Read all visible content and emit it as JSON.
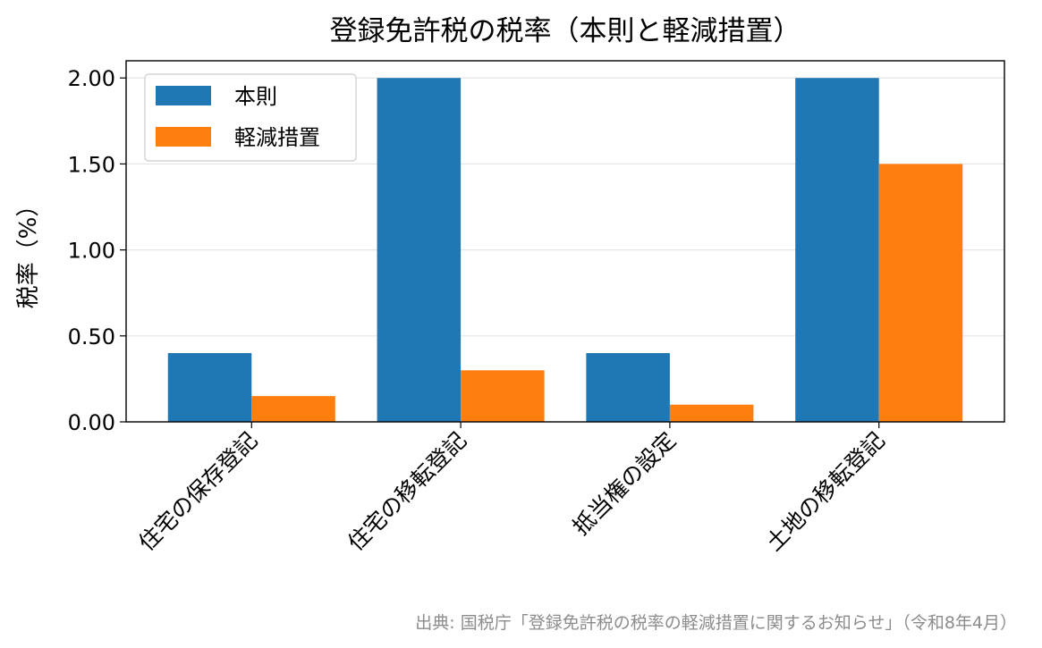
{
  "chart_data": {
    "type": "bar",
    "title": "登録免許税の税率（本則と軽減措置）",
    "xlabel": "",
    "ylabel": "税率（%）",
    "categories": [
      "住宅の保存登記",
      "住宅の移転登記",
      "抵当権の設定",
      "土地の移転登記"
    ],
    "series": [
      {
        "name": "本則",
        "values": [
          0.4,
          2.0,
          0.4,
          2.0
        ],
        "color": "#1f77b4"
      },
      {
        "name": "軽減措置",
        "values": [
          0.15,
          0.3,
          0.1,
          1.5
        ],
        "color": "#ff7f0e"
      }
    ],
    "ylim": [
      0,
      2.1
    ],
    "yticks": [
      0.0,
      0.5,
      1.0,
      1.5,
      2.0
    ],
    "ytick_labels": [
      "0.00",
      "0.50",
      "1.00",
      "1.50",
      "2.00"
    ],
    "grid": "horizontal",
    "legend_position": "top-left",
    "x_tick_rotation": 45,
    "source_note": "出典: 国税庁「登録免許税の税率の軽減措置に関するお知らせ」（令和8年4月）"
  }
}
